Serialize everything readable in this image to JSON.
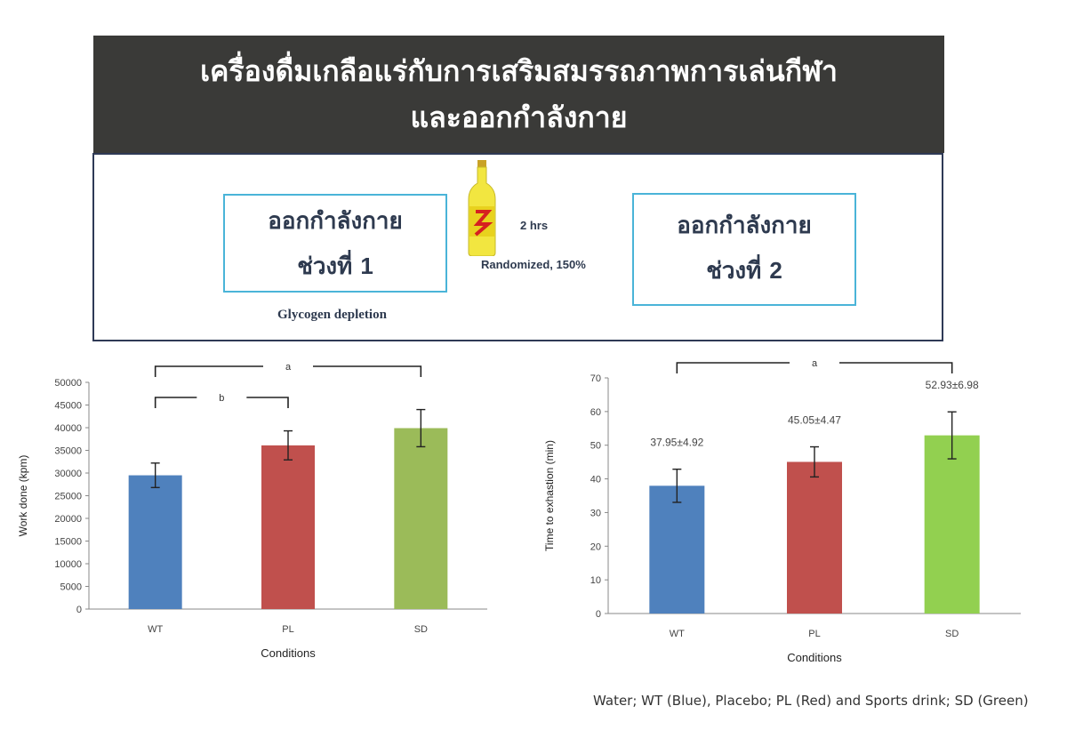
{
  "banner": {
    "line1": "เครื่องดื่มเกลือแร่กับการเสริมสมรรถภาพการเล่นกีฬา",
    "line2": "และออกกำลังกาย"
  },
  "protocol": {
    "phase1_line1": "ออกกำลังกาย",
    "phase1_line2_word": "ช่วงที่",
    "phase1_number": "1",
    "phase2_line1": "ออกกำลังกาย",
    "phase2_line2_word": "ช่วงที่",
    "phase2_number": "2",
    "interval_label": "2 hrs",
    "randomized_label": "Randomized, 150%",
    "depletion_label": "Glycogen depletion",
    "bottle_icon": "sports-drink-bottle-icon"
  },
  "colors": {
    "banner_bg": "#3a3a38",
    "wt": "#4f81bd",
    "pl": "#c0504d",
    "sd_chart1": "#9bbb59",
    "sd_chart2": "#92d050",
    "phase_border": "#4ab4d8"
  },
  "chart_data": [
    {
      "type": "bar",
      "categories": [
        "WT",
        "PL",
        "SD"
      ],
      "values": [
        29500,
        36100,
        39900
      ],
      "errors": [
        2700,
        3200,
        4100
      ],
      "xlabel": "Conditions",
      "ylabel": "Work done (kpm)",
      "ylim": [
        0,
        50000
      ],
      "yticks": [
        0,
        5000,
        10000,
        15000,
        20000,
        25000,
        30000,
        35000,
        40000,
        45000,
        50000
      ],
      "grid": false,
      "significance": [
        {
          "from": "WT",
          "to": "SD",
          "label": "a"
        },
        {
          "from": "WT",
          "to": "PL",
          "label": "b"
        }
      ]
    },
    {
      "type": "bar",
      "categories": [
        "WT",
        "PL",
        "SD"
      ],
      "values": [
        37.95,
        45.05,
        52.93
      ],
      "errors": [
        4.92,
        4.47,
        6.98
      ],
      "data_labels": [
        "37.95±4.92",
        "45.05±4.47",
        "52.93±6.98"
      ],
      "xlabel": "Conditions",
      "ylabel": "Time to exhastion (min)",
      "ylim": [
        0,
        70
      ],
      "yticks": [
        0,
        10,
        20,
        30,
        40,
        50,
        60,
        70
      ],
      "grid": false,
      "significance": [
        {
          "from": "WT",
          "to": "SD",
          "label": "a"
        }
      ]
    }
  ],
  "legend_note": "Water; WT (Blue), Placebo; PL (Red) and Sports drink; SD (Green)"
}
